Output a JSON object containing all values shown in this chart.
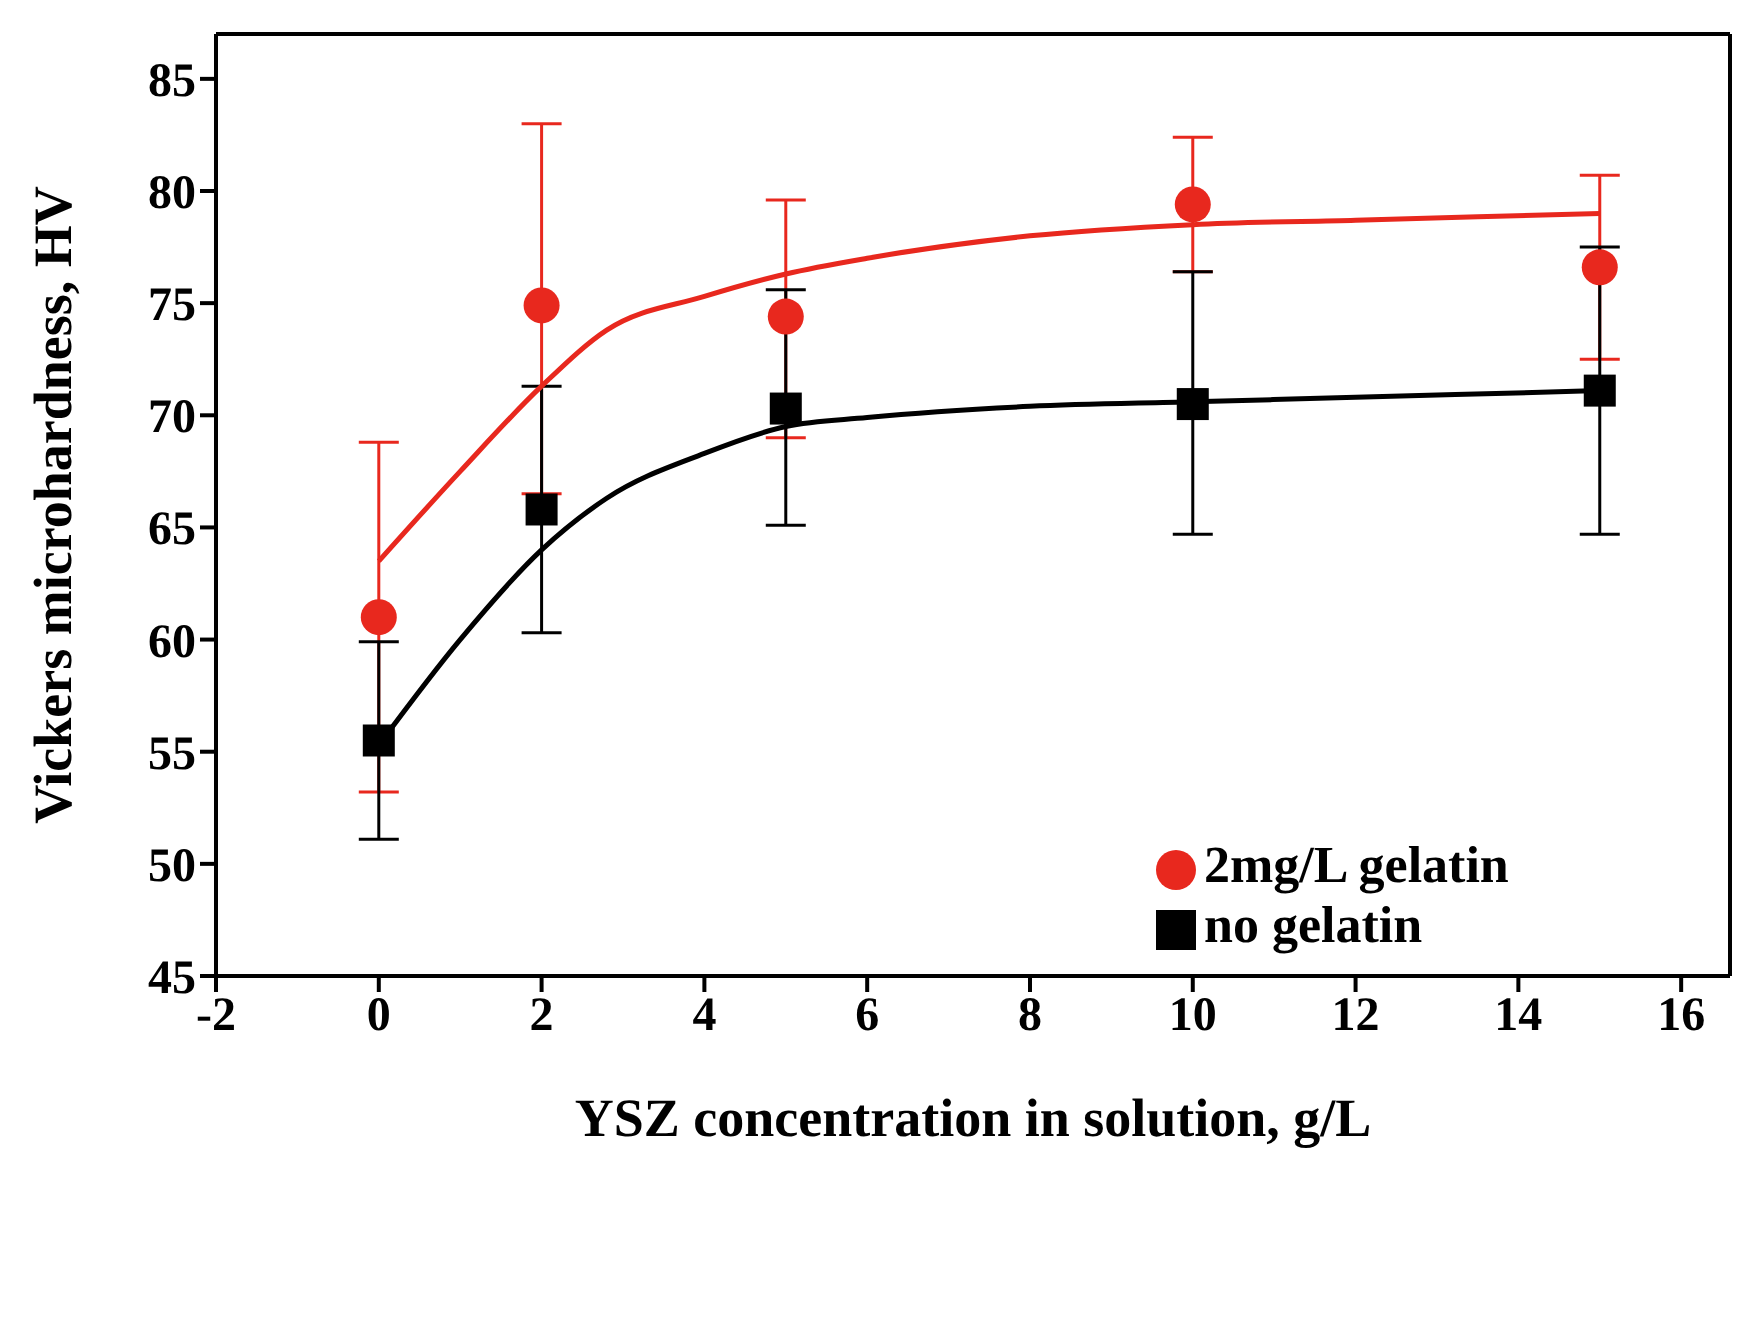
{
  "chart_data": {
    "type": "scatter",
    "xlabel": "YSZ concentration in solution, g/L",
    "ylabel": "Vickers microhardness, HV",
    "xlim": [
      -2,
      16.6
    ],
    "xticks": [
      -2,
      0,
      2,
      4,
      6,
      8,
      10,
      12,
      14,
      16
    ],
    "ylim": [
      45,
      87
    ],
    "yticks": [
      45,
      50,
      55,
      60,
      65,
      70,
      75,
      80,
      85
    ],
    "grid": false,
    "legend": "bottom right",
    "series": [
      {
        "name": "2mg/L gelatin",
        "marker": "circle",
        "color": "#e8281e",
        "x": [
          0,
          2,
          5,
          10,
          15
        ],
        "values": [
          61,
          74.9,
          74.4,
          79.4,
          76.6
        ],
        "errors": [
          [
            53.2,
            68.8
          ],
          [
            66.5,
            83
          ],
          [
            69,
            79.6
          ],
          [
            76.4,
            82.4
          ],
          [
            72.5,
            80.7
          ]
        ]
      },
      {
        "name": "no gelatin",
        "marker": "square",
        "color": "#000000",
        "x": [
          0,
          2,
          5,
          10,
          15
        ],
        "values": [
          55.5,
          65.8,
          70.3,
          70.5,
          71.1
        ],
        "errors": [
          [
            51.1,
            59.9
          ],
          [
            60.3,
            71.3
          ],
          [
            65.1,
            75.6
          ],
          [
            64.7,
            76.4
          ],
          [
            64.7,
            77.5
          ]
        ]
      },
      {
        "type": "line",
        "color": "#e8281e",
        "x": [
          0,
          1,
          2,
          2.8,
          4,
          5,
          6,
          8,
          10,
          12,
          15
        ],
        "values": [
          63.5,
          67.5,
          71.3,
          73.8,
          75.3,
          76.3,
          77,
          78,
          78.5,
          78.7,
          79
        ]
      },
      {
        "type": "line",
        "color": "#000000",
        "x": [
          0,
          1,
          2,
          2.8,
          4,
          5,
          6,
          8,
          10,
          12,
          15
        ],
        "values": [
          55.3,
          60,
          64,
          66.3,
          68.3,
          69.5,
          69.9,
          70.4,
          70.6,
          70.8,
          71.1
        ]
      }
    ]
  }
}
